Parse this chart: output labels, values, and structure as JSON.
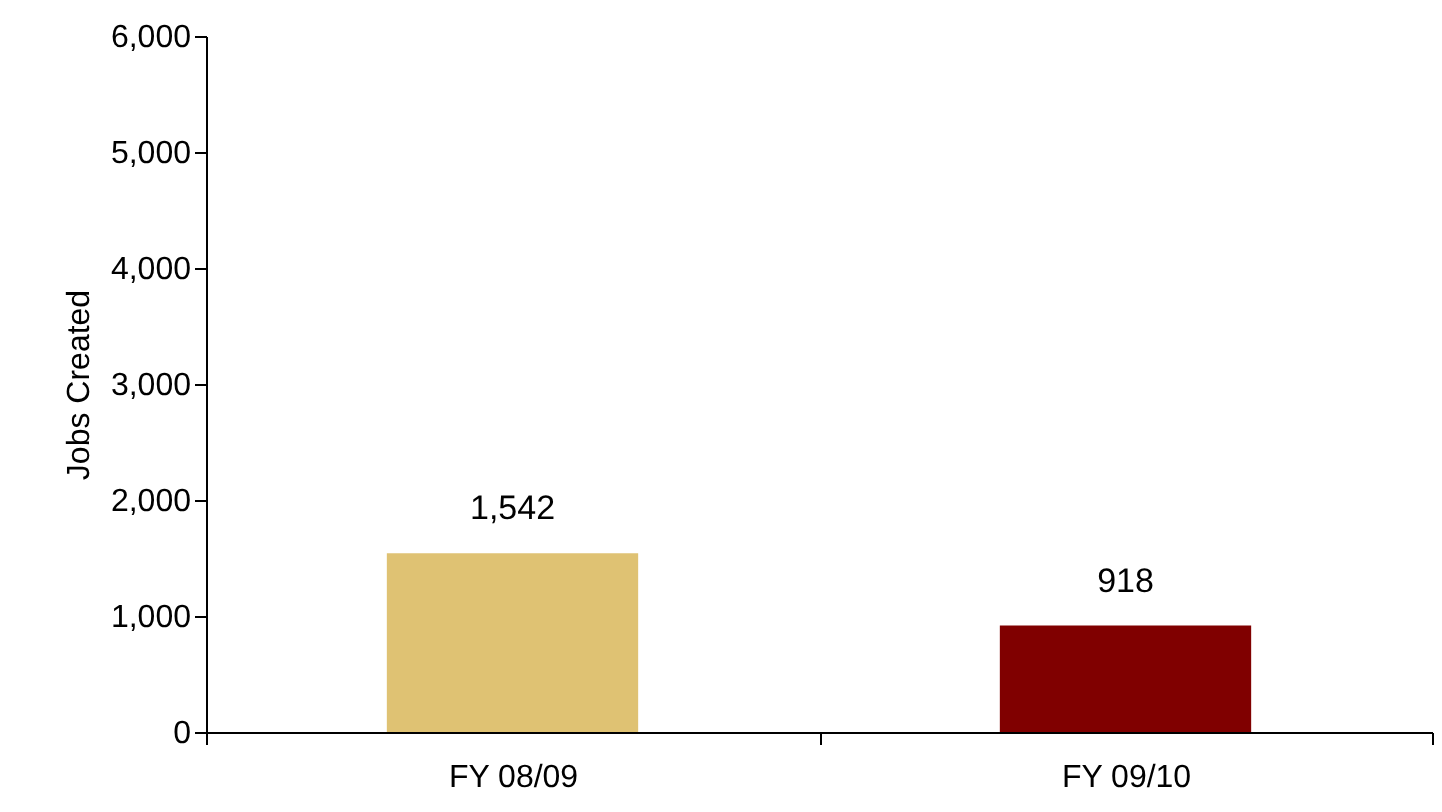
{
  "chart_data": {
    "type": "bar",
    "ylabel": "Jobs Created",
    "categories": [
      "FY 08/09",
      "FY 09/10"
    ],
    "values": [
      1542,
      918
    ],
    "value_labels": [
      "1,542",
      "918"
    ],
    "colors": [
      "#dfc273",
      "#800000"
    ],
    "ylim": [
      0,
      6000
    ],
    "yticks": [
      {
        "value": 0,
        "label": "0"
      },
      {
        "value": 1000,
        "label": "1,000"
      },
      {
        "value": 2000,
        "label": "2,000"
      },
      {
        "value": 3000,
        "label": "3,000"
      },
      {
        "value": 4000,
        "label": "4,000"
      },
      {
        "value": 5000,
        "label": "5,000"
      },
      {
        "value": 6000,
        "label": "6,000"
      }
    ],
    "grid": false
  }
}
